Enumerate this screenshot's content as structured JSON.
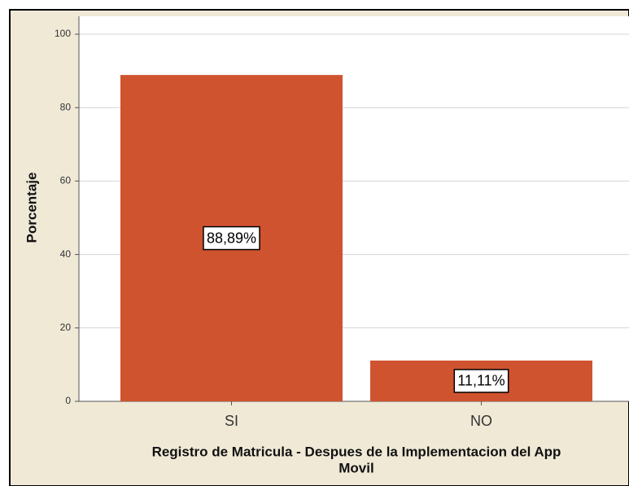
{
  "chart_data": {
    "type": "bar",
    "y_label": "Porcentaje",
    "x_label": [
      "Registro de Matricula - Despues de la Implementacion del App",
      "Movil"
    ],
    "categories": [
      "SI",
      "NO"
    ],
    "values": [
      88.89,
      11.11
    ],
    "value_labels": [
      "88,89%",
      "11,11%"
    ],
    "color": "#d0532f",
    "ylim": [
      0,
      100
    ],
    "yticks": [
      0,
      20,
      40,
      60,
      80,
      100
    ],
    "grid": true
  }
}
